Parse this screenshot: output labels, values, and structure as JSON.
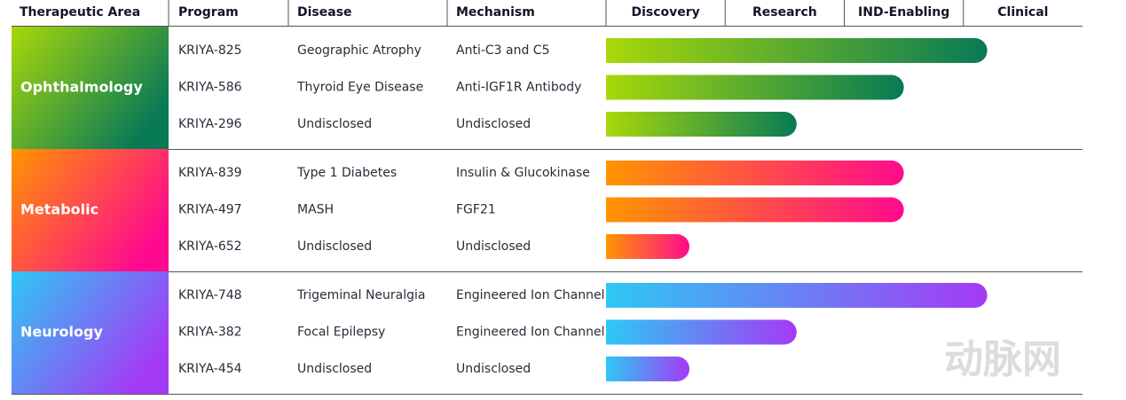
{
  "chart_data": {
    "type": "pipeline",
    "headers": {
      "area": "Therapeutic Area",
      "program": "Program",
      "disease": "Disease",
      "mechanism": "Mechanism"
    },
    "stages": [
      "Discovery",
      "Research",
      "IND-Enabling",
      "Clinical"
    ],
    "xlim": [
      0,
      4
    ],
    "areas": [
      {
        "name": "Ophthalmology",
        "colors": [
          "#a8d80a",
          "#087a56"
        ],
        "programs": [
          {
            "program": "KRIYA-825",
            "disease": "Geographic Atrophy",
            "mechanism": "Anti-C3 and C5",
            "progress": 3.2
          },
          {
            "program": "KRIYA-586",
            "disease": "Thyroid Eye Disease",
            "mechanism": "Anti-IGF1R Antibody",
            "progress": 2.5
          },
          {
            "program": "KRIYA-296",
            "disease": "Undisclosed",
            "mechanism": "Undisclosed",
            "progress": 1.6
          }
        ]
      },
      {
        "name": "Metabolic",
        "colors": [
          "#ff9500",
          "#ff0a8e"
        ],
        "programs": [
          {
            "program": "KRIYA-839",
            "disease": "Type 1 Diabetes",
            "mechanism": "Insulin & Glucokinase",
            "progress": 2.5
          },
          {
            "program": "KRIYA-497",
            "disease": "MASH",
            "mechanism": "FGF21",
            "progress": 2.5
          },
          {
            "program": "KRIYA-652",
            "disease": "Undisclosed",
            "mechanism": "Undisclosed",
            "progress": 0.7
          }
        ]
      },
      {
        "name": "Neurology",
        "colors": [
          "#2ec8f4",
          "#a43af5"
        ],
        "programs": [
          {
            "program": "KRIYA-748",
            "disease": "Trigeminal Neuralgia",
            "mechanism": "Engineered Ion Channel",
            "progress": 3.2
          },
          {
            "program": "KRIYA-382",
            "disease": "Focal Epilepsy",
            "mechanism": "Engineered Ion Channel",
            "progress": 1.6
          },
          {
            "program": "KRIYA-454",
            "disease": "Undisclosed",
            "mechanism": "Undisclosed",
            "progress": 0.7
          }
        ]
      }
    ],
    "watermark": "动脉网"
  }
}
